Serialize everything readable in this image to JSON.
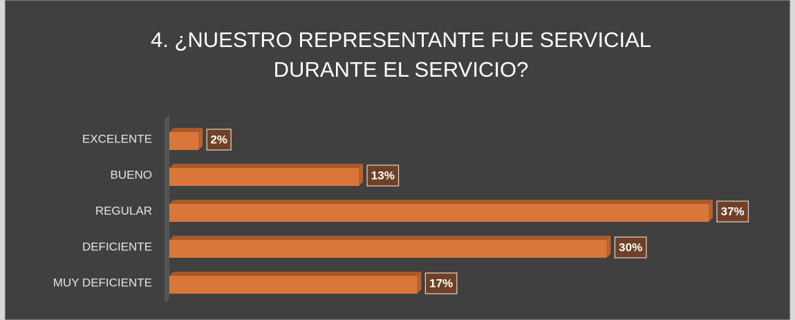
{
  "chart_data": {
    "type": "bar",
    "orientation": "horizontal",
    "title": "4.   ¿NUESTRO REPRESENTANTE FUE SERVICIAL DURANTE EL SERVICIO?",
    "categories": [
      "EXCELENTE",
      "BUENO",
      "REGULAR",
      "DEFICIENTE",
      "MUY DEFICIENTE"
    ],
    "values": [
      2,
      13,
      37,
      30,
      17
    ],
    "value_labels": [
      "2%",
      "13%",
      "37%",
      "30%",
      "17%"
    ],
    "color": "#d9773a"
  }
}
